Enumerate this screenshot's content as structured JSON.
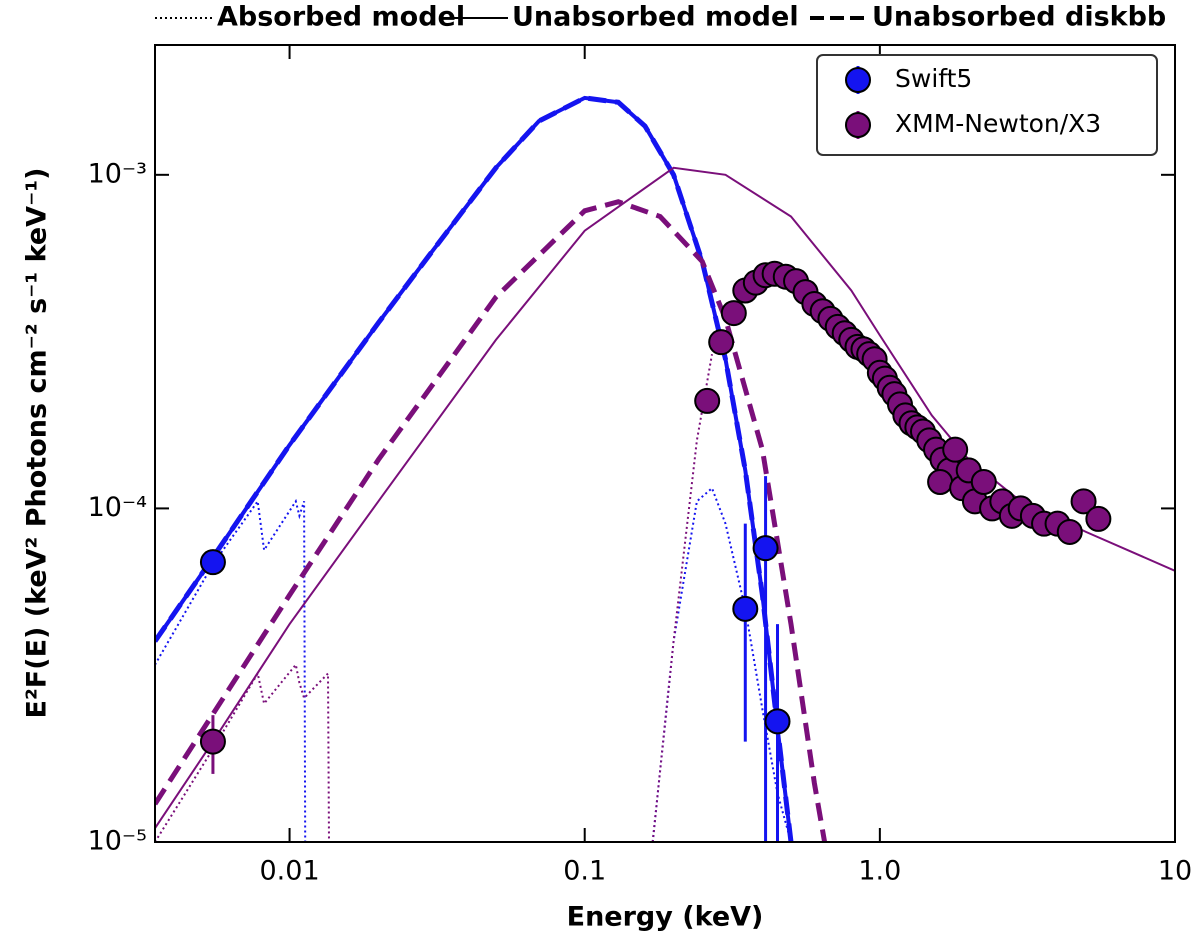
{
  "chart_data": {
    "type": "scatter",
    "xlabel": "Energy (keV)",
    "ylabel": "E²F(E) (keV² Photons cm⁻² s⁻¹ keV⁻¹)",
    "xscale": "log",
    "yscale": "log",
    "xlim": [
      0.0035,
      10
    ],
    "ylim": [
      1e-05,
      0.00245
    ],
    "xticks": [
      0.01,
      0.1,
      {
        "value": 1,
        "label": "1.0"
      },
      10
    ],
    "yticks": [
      {
        "value": 1e-05,
        "label": "10⁻⁵"
      },
      {
        "value": 0.0001,
        "label": "10⁻⁴"
      },
      {
        "value": 0.001,
        "label": "10⁻³"
      }
    ],
    "legend": "upper right",
    "style_legend": [
      {
        "label": "Absorbed model",
        "style": "dotted"
      },
      {
        "label": "Unabsorbed model",
        "style": "solid"
      },
      {
        "label": "Unabsorbed diskbb",
        "style": "dashed"
      }
    ],
    "series": [
      {
        "name": "Swift5",
        "kind": "scatter",
        "color": "#1414f0",
        "x": [
          0.0055,
          0.35,
          0.41,
          0.45
        ],
        "values": [
          6.9e-05,
          5e-05,
          7.6e-05,
          2.3e-05
        ],
        "ylow": [
          null,
          2e-05,
          1e-05,
          1e-05
        ],
        "yhigh": [
          null,
          9e-05,
          0.000125,
          4.5e-05
        ]
      },
      {
        "name": "XMM-Newton/X3",
        "kind": "scatter",
        "color": "#7a0f7a",
        "x": [
          0.0055,
          0.26,
          0.29,
          0.32,
          0.35,
          0.38,
          0.41,
          0.44,
          0.48,
          0.52,
          0.56,
          0.6,
          0.64,
          0.68,
          0.72,
          0.76,
          0.8,
          0.84,
          0.88,
          0.92,
          0.96,
          1.0,
          1.04,
          1.08,
          1.12,
          1.17,
          1.22,
          1.28,
          1.34,
          1.4,
          1.47,
          1.55,
          1.63,
          1.72,
          1.6,
          1.8,
          1.9,
          2.0,
          2.1,
          2.25,
          2.4,
          2.6,
          2.8,
          3.0,
          3.3,
          3.6,
          4.0,
          4.4,
          4.9,
          5.5
        ],
        "values": [
          2e-05,
          0.00021,
          0.000315,
          0.000385,
          0.00045,
          0.000475,
          0.0005,
          0.000505,
          0.000495,
          0.00048,
          0.000445,
          0.00041,
          0.00039,
          0.00037,
          0.00035,
          0.000335,
          0.00032,
          0.000305,
          0.0003,
          0.00029,
          0.00028,
          0.000255,
          0.000245,
          0.00023,
          0.00022,
          0.000205,
          0.00019,
          0.00018,
          0.000175,
          0.00017,
          0.00016,
          0.00015,
          0.00014,
          0.00013,
          0.00012,
          0.00015,
          0.000115,
          0.00013,
          0.000105,
          0.00012,
          0.0001,
          0.000105,
          9.5e-05,
          0.0001,
          9.5e-05,
          9e-05,
          9e-05,
          8.5e-05,
          0.000105,
          9.3e-05
        ],
        "ylow": [
          1.6e-05,
          null,
          null,
          null,
          null,
          null,
          null,
          null,
          null,
          null,
          null,
          null,
          null,
          null,
          null,
          null,
          null,
          null,
          null,
          null,
          null,
          null,
          null,
          null,
          null,
          null,
          null,
          null,
          null,
          null,
          null,
          null,
          null,
          null,
          null,
          null,
          null,
          null,
          null,
          null,
          null,
          null,
          null,
          null,
          null,
          null,
          null,
          null,
          null,
          null
        ],
        "yhigh": [
          2.4e-05,
          null,
          null,
          null,
          null,
          null,
          null,
          null,
          null,
          null,
          null,
          null,
          null,
          null,
          null,
          null,
          null,
          null,
          null,
          null,
          null,
          null,
          null,
          null,
          null,
          null,
          null,
          null,
          null,
          null,
          null,
          null,
          null,
          null,
          null,
          null,
          null,
          null,
          null,
          null,
          null,
          null,
          null,
          null,
          null,
          null,
          null,
          null,
          null,
          null
        ]
      },
      {
        "kind": "line",
        "style": "solid",
        "color": "#1414f0",
        "x": [
          0.0035,
          0.005,
          0.01,
          0.02,
          0.03,
          0.05,
          0.07,
          0.1,
          0.13,
          0.16,
          0.2,
          0.25,
          0.3,
          0.35,
          0.4,
          0.45,
          0.5
        ],
        "values": [
          4e-05,
          6.3e-05,
          0.000155,
          0.00036,
          0.00058,
          0.00105,
          0.00145,
          0.0017,
          0.00165,
          0.0014,
          0.001,
          0.00055,
          0.00028,
          0.00013,
          5.5e-05,
          2.2e-05,
          1e-05
        ]
      },
      {
        "kind": "line",
        "style": "dashed",
        "color": "#1414f0",
        "x": [
          0.0035,
          0.005,
          0.01,
          0.02,
          0.03,
          0.05,
          0.07,
          0.1,
          0.13,
          0.16,
          0.2,
          0.25,
          0.3,
          0.35,
          0.4,
          0.45,
          0.5
        ],
        "values": [
          4e-05,
          6.3e-05,
          0.000155,
          0.00036,
          0.00058,
          0.00105,
          0.00145,
          0.0017,
          0.00165,
          0.0014,
          0.001,
          0.00055,
          0.00028,
          0.00013,
          5.5e-05,
          2.2e-05,
          1e-05
        ]
      },
      {
        "kind": "line",
        "style": "dotted",
        "color": "#1414f0",
        "x": [
          0.0035,
          0.0055,
          0.0078,
          0.0082,
          0.0105,
          0.0108,
          0.0112,
          0.0113,
          0.05,
          0.17,
          0.2,
          0.24,
          0.27,
          0.3,
          0.35,
          0.4,
          0.45,
          0.5
        ],
        "values": [
          3.4e-05,
          6.8e-05,
          0.000105,
          7.5e-05,
          0.000105,
          9.5e-05,
          0.000105,
          1e-05,
          null,
          1e-05,
          4e-05,
          0.000105,
          0.000115,
          9e-05,
          5e-05,
          2.5e-05,
          1.4e-05,
          1e-05
        ]
      },
      {
        "kind": "line",
        "style": "solid",
        "color": "#7a0f7a",
        "x": [
          0.0035,
          0.0055,
          0.01,
          0.02,
          0.05,
          0.1,
          0.2,
          0.3,
          0.5,
          0.8,
          1.0,
          1.5,
          2,
          3,
          5,
          10
        ],
        "values": [
          1.1e-05,
          2e-05,
          4.5e-05,
          0.000105,
          0.00032,
          0.00068,
          0.00105,
          0.001,
          0.00075,
          0.00045,
          0.00033,
          0.00019,
          0.00014,
          0.000105,
          8.5e-05,
          6.5e-05
        ]
      },
      {
        "kind": "line",
        "style": "dashed",
        "color": "#7a0f7a",
        "x": [
          0.0035,
          0.01,
          0.02,
          0.05,
          0.1,
          0.13,
          0.18,
          0.25,
          0.3,
          0.4,
          0.5,
          0.6,
          0.65
        ],
        "values": [
          1.3e-05,
          5.5e-05,
          0.00014,
          0.00043,
          0.00078,
          0.00083,
          0.00075,
          0.00055,
          0.00037,
          0.00015,
          4.5e-05,
          1.5e-05,
          1e-05
        ]
      },
      {
        "kind": "line",
        "style": "dotted",
        "color": "#7a0f7a",
        "x": [
          0.0035,
          0.0055,
          0.0078,
          0.0082,
          0.0105,
          0.0108,
          0.0112,
          0.0135,
          0.0136,
          0.05,
          0.17,
          0.2,
          0.24,
          0.27
        ],
        "values": [
          1e-05,
          1.9e-05,
          3.2e-05,
          2.6e-05,
          3.4e-05,
          3e-05,
          2.7e-05,
          3.2e-05,
          1e-05,
          null,
          1e-05,
          4e-05,
          0.00016,
          0.00029
        ]
      }
    ]
  }
}
